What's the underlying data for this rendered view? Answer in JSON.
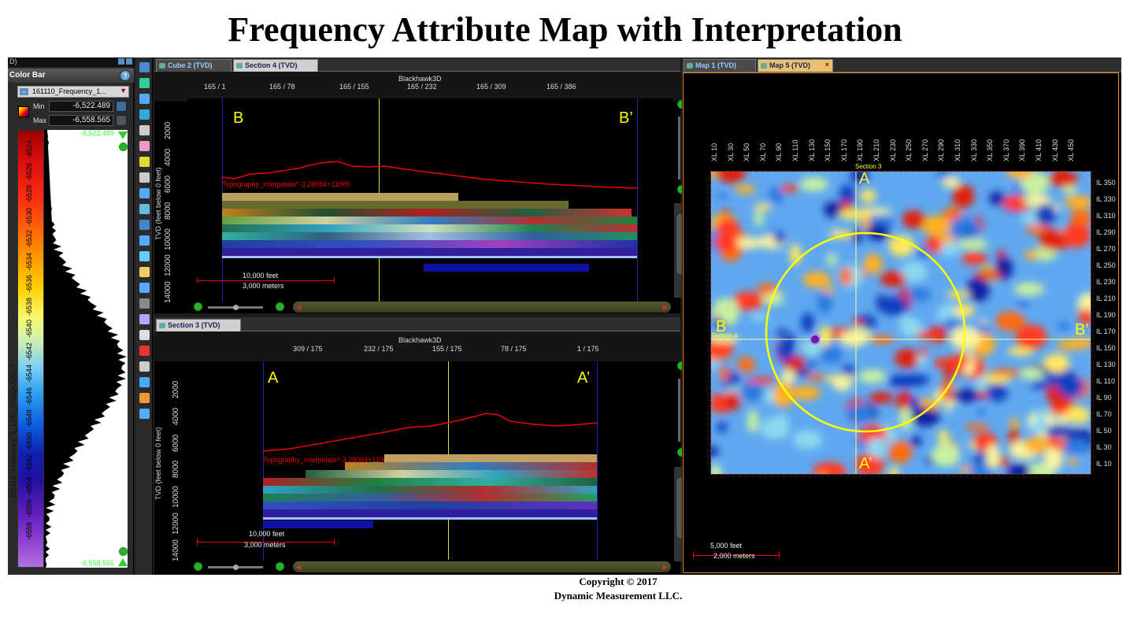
{
  "title": "Frequency Attribute Map with Interpretation",
  "colorbar": {
    "header": "D)",
    "title": "Color Bar",
    "attribute": "161110_Frequency_1...",
    "min_label": "Min",
    "max_label": "Max",
    "min_value": "-6,522.489",
    "max_value": "-6,558.565",
    "top_value": "-6,522.489",
    "bottom_value": "-6,558.565",
    "vertical_label": "161110_Frequency_1_LOC_FREQUENCY",
    "ticks": [
      "-6524",
      "-6526",
      "-6528",
      "-6530",
      "-6532",
      "-6534",
      "-6536",
      "-6538",
      "-6540",
      "-6542",
      "-6544",
      "-6546",
      "-6548",
      "-6550",
      "-6552",
      "-6554",
      "-6556",
      "-6558"
    ]
  },
  "section_top": {
    "tabs": [
      "Cube 2 (TVD)",
      "Section 4 (TVD)"
    ],
    "survey": "Blackhawk3D",
    "ticks": [
      "165 / 1",
      "165 / 78",
      "165 / 155",
      "165 / 232",
      "165 / 309",
      "165 / 386"
    ],
    "depth_ticks": [
      "2000",
      "4000",
      "6000",
      "8000",
      "10000",
      "12000",
      "14000"
    ],
    "ylabel": "TVD (feet below 0 feet)",
    "label_left": "B",
    "label_right": "B’",
    "topo_label": "Topography_interpolate*-3.28084+11000",
    "scale_feet": "10,000 feet",
    "scale_meters": "3,000 meters"
  },
  "section_bottom": {
    "tabs": [
      "Section 3 (TVD)"
    ],
    "survey": "Blackhawk3D",
    "ticks": [
      "309 / 175",
      "232 / 175",
      "155 / 175",
      "78 / 175",
      "1 / 175"
    ],
    "depth_ticks": [
      "2000",
      "4000",
      "6000",
      "8000",
      "10000",
      "12000",
      "14000"
    ],
    "ylabel": "TVD (feet below 0 feet)",
    "label_left": "A",
    "label_right": "A’",
    "topo_label": "Topography_interpolate*-3.28084+11000",
    "scale_feet": "10,000 feet",
    "scale_meters": "3,000 meters"
  },
  "map": {
    "tabs": [
      "Map 1 (TVD)",
      "Map 5 (TVD)"
    ],
    "close": "×",
    "xl_ticks": [
      "XL 10",
      "XL 30",
      "XL 50",
      "XL 70",
      "XL 90",
      "XL 110",
      "XL 130",
      "XL 150",
      "XL 170",
      "XL 190",
      "XL 210",
      "XL 230",
      "XL 250",
      "XL 270",
      "XL 290",
      "XL 310",
      "XL 330",
      "XL 350",
      "XL 370",
      "XL 390",
      "XL 410",
      "XL 430",
      "XL 450"
    ],
    "il_ticks": [
      "IL 350",
      "IL 330",
      "IL 310",
      "IL 290",
      "IL 270",
      "IL 250",
      "IL 230",
      "IL 210",
      "IL 190",
      "IL 170",
      "IL 150",
      "IL 130",
      "IL 110",
      "IL 90",
      "IL 70",
      "IL 50",
      "IL 30",
      "IL 10"
    ],
    "section_top_label": "Section 3",
    "section_left_label": "Section 4",
    "label_a": "A",
    "label_a_prime": "A’",
    "label_b": "B",
    "label_b_prime": "B’",
    "scale_feet": "5,000 feet",
    "scale_meters": "2,000 meters"
  },
  "copyright": {
    "line1": "Copyright  © 2017",
    "line2": "Dynamic Measurement LLC."
  },
  "colors": {
    "annotation": "#ffff00",
    "topography": "#e00000",
    "accent_tab": "#e09020"
  }
}
